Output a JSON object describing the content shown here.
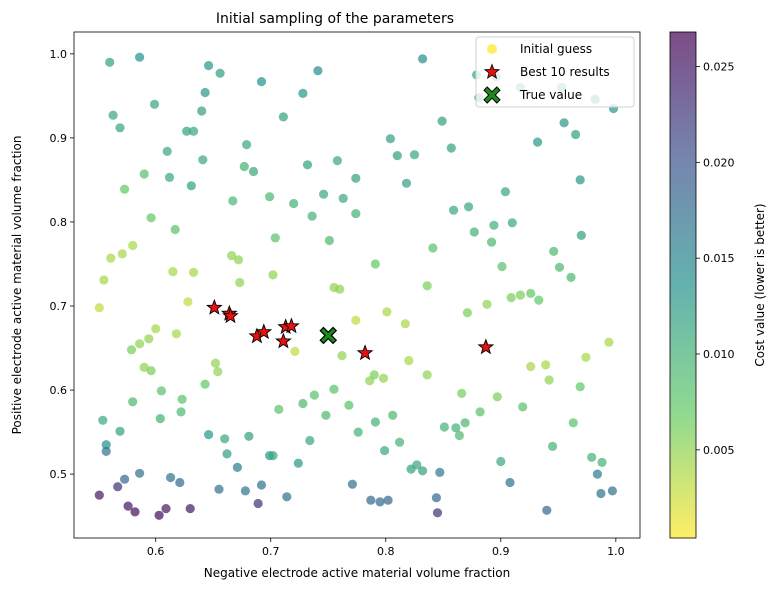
{
  "chart_data": {
    "type": "scatter",
    "title": "Initial sampling of the parameters",
    "xlabel": "Negative electrode active material volume fraction",
    "ylabel": "Positive electrode active material volume fraction",
    "xlim": [
      0.529,
      1.021
    ],
    "ylim": [
      0.424,
      1.026
    ],
    "x_ticks": [
      0.6,
      0.7,
      0.8,
      0.9,
      1.0
    ],
    "x_tick_labels": [
      "0.6",
      "0.7",
      "0.8",
      "0.9",
      "1.0"
    ],
    "y_ticks": [
      0.5,
      0.6,
      0.7,
      0.8,
      0.9,
      1.0
    ],
    "y_tick_labels": [
      "0.5",
      "0.6",
      "0.7",
      "0.8",
      "0.9",
      "1.0"
    ],
    "grid": false,
    "legend_position": "top-right",
    "legend": {
      "initial": "Initial guess",
      "best": "Best 10 results",
      "true": "True value"
    },
    "colorbar": {
      "label": "Cost value (lower is better)",
      "min": 0.0004,
      "max": 0.0268,
      "colormap": "viridis_r",
      "ticks": [
        0.005,
        0.01,
        0.015,
        0.02,
        0.025
      ],
      "tick_labels": [
        "0.005",
        "0.010",
        "0.015",
        "0.020",
        "0.025"
      ]
    },
    "initial_guess": {
      "alpha": 0.7,
      "points": [
        [
          0.56,
          0.99,
          0.012
        ],
        [
          0.586,
          0.996,
          0.0135
        ],
        [
          0.646,
          0.986,
          0.013
        ],
        [
          0.656,
          0.977,
          0.012
        ],
        [
          0.692,
          0.967,
          0.0135
        ],
        [
          0.741,
          0.98,
          0.014
        ],
        [
          0.832,
          0.994,
          0.014
        ],
        [
          0.879,
          0.975,
          0.012
        ],
        [
          0.881,
          0.948,
          0.013
        ],
        [
          0.896,
          0.973,
          0.014
        ],
        [
          0.917,
          0.96,
          0.012
        ],
        [
          0.953,
          0.96,
          0.012
        ],
        [
          0.982,
          0.946,
          0.013
        ],
        [
          0.998,
          0.935,
          0.013
        ],
        [
          0.563,
          0.927,
          0.011
        ],
        [
          0.569,
          0.912,
          0.0115
        ],
        [
          0.599,
          0.94,
          0.011
        ],
        [
          0.627,
          0.908,
          0.012
        ],
        [
          0.633,
          0.908,
          0.011
        ],
        [
          0.64,
          0.932,
          0.012
        ],
        [
          0.643,
          0.954,
          0.013
        ],
        [
          0.679,
          0.892,
          0.011
        ],
        [
          0.711,
          0.925,
          0.012
        ],
        [
          0.728,
          0.953,
          0.013
        ],
        [
          0.804,
          0.899,
          0.012
        ],
        [
          0.81,
          0.879,
          0.012
        ],
        [
          0.825,
          0.88,
          0.011
        ],
        [
          0.849,
          0.92,
          0.012
        ],
        [
          0.857,
          0.888,
          0.012
        ],
        [
          0.932,
          0.895,
          0.013
        ],
        [
          0.955,
          0.918,
          0.013
        ],
        [
          0.965,
          0.904,
          0.012
        ],
        [
          0.573,
          0.839,
          0.007
        ],
        [
          0.61,
          0.884,
          0.011
        ],
        [
          0.612,
          0.853,
          0.011
        ],
        [
          0.631,
          0.843,
          0.012
        ],
        [
          0.641,
          0.874,
          0.011
        ],
        [
          0.677,
          0.866,
          0.01
        ],
        [
          0.685,
          0.86,
          0.011
        ],
        [
          0.732,
          0.868,
          0.012
        ],
        [
          0.758,
          0.873,
          0.011
        ],
        [
          0.763,
          0.828,
          0.011
        ],
        [
          0.774,
          0.852,
          0.012
        ],
        [
          0.818,
          0.846,
          0.012
        ],
        [
          0.904,
          0.836,
          0.011
        ],
        [
          0.969,
          0.85,
          0.013
        ],
        [
          0.59,
          0.857,
          0.008
        ],
        [
          0.596,
          0.805,
          0.007
        ],
        [
          0.617,
          0.791,
          0.008
        ],
        [
          0.667,
          0.825,
          0.009
        ],
        [
          0.699,
          0.83,
          0.009
        ],
        [
          0.72,
          0.822,
          0.01
        ],
        [
          0.736,
          0.807,
          0.01
        ],
        [
          0.746,
          0.833,
          0.011
        ],
        [
          0.751,
          0.778,
          0.009
        ],
        [
          0.774,
          0.81,
          0.01
        ],
        [
          0.859,
          0.814,
          0.011
        ],
        [
          0.872,
          0.818,
          0.011
        ],
        [
          0.877,
          0.788,
          0.01
        ],
        [
          0.894,
          0.796,
          0.01
        ],
        [
          0.91,
          0.799,
          0.011
        ],
        [
          0.97,
          0.784,
          0.012
        ],
        [
          0.555,
          0.731,
          0.004
        ],
        [
          0.561,
          0.757,
          0.004
        ],
        [
          0.571,
          0.762,
          0.004
        ],
        [
          0.58,
          0.772,
          0.004
        ],
        [
          0.615,
          0.741,
          0.004
        ],
        [
          0.633,
          0.74,
          0.004
        ],
        [
          0.666,
          0.76,
          0.005
        ],
        [
          0.672,
          0.755,
          0.005
        ],
        [
          0.673,
          0.728,
          0.005
        ],
        [
          0.702,
          0.737,
          0.005
        ],
        [
          0.704,
          0.781,
          0.008
        ],
        [
          0.791,
          0.75,
          0.007
        ],
        [
          0.841,
          0.769,
          0.008
        ],
        [
          0.892,
          0.776,
          0.009
        ],
        [
          0.901,
          0.747,
          0.008
        ],
        [
          0.946,
          0.765,
          0.009
        ],
        [
          0.951,
          0.746,
          0.009
        ],
        [
          0.961,
          0.734,
          0.009
        ],
        [
          0.551,
          0.698,
          0.003
        ],
        [
          0.586,
          0.655,
          0.005
        ],
        [
          0.594,
          0.661,
          0.005
        ],
        [
          0.6,
          0.673,
          0.004
        ],
        [
          0.618,
          0.667,
          0.004
        ],
        [
          0.628,
          0.705,
          0.003
        ],
        [
          0.755,
          0.722,
          0.005
        ],
        [
          0.76,
          0.72,
          0.005
        ],
        [
          0.762,
          0.641,
          0.005
        ],
        [
          0.774,
          0.683,
          0.003
        ],
        [
          0.801,
          0.693,
          0.004
        ],
        [
          0.817,
          0.679,
          0.004
        ],
        [
          0.836,
          0.724,
          0.006
        ],
        [
          0.871,
          0.692,
          0.006
        ],
        [
          0.888,
          0.702,
          0.005
        ],
        [
          0.909,
          0.71,
          0.006
        ],
        [
          0.917,
          0.713,
          0.006
        ],
        [
          0.926,
          0.715,
          0.007
        ],
        [
          0.933,
          0.707,
          0.007
        ],
        [
          0.579,
          0.648,
          0.006
        ],
        [
          0.59,
          0.627,
          0.005
        ],
        [
          0.596,
          0.623,
          0.006
        ],
        [
          0.605,
          0.599,
          0.008
        ],
        [
          0.623,
          0.589,
          0.008
        ],
        [
          0.643,
          0.607,
          0.007
        ],
        [
          0.652,
          0.632,
          0.005
        ],
        [
          0.654,
          0.622,
          0.005
        ],
        [
          0.721,
          0.646,
          0.003
        ],
        [
          0.786,
          0.611,
          0.005
        ],
        [
          0.79,
          0.618,
          0.006
        ],
        [
          0.798,
          0.614,
          0.005
        ],
        [
          0.82,
          0.635,
          0.004
        ],
        [
          0.836,
          0.618,
          0.005
        ],
        [
          0.866,
          0.596,
          0.006
        ],
        [
          0.897,
          0.592,
          0.006
        ],
        [
          0.926,
          0.628,
          0.004
        ],
        [
          0.939,
          0.63,
          0.004
        ],
        [
          0.942,
          0.612,
          0.005
        ],
        [
          0.969,
          0.604,
          0.007
        ],
        [
          0.974,
          0.639,
          0.004
        ],
        [
          0.994,
          0.657,
          0.004
        ],
        [
          0.554,
          0.564,
          0.011
        ],
        [
          0.557,
          0.535,
          0.014
        ],
        [
          0.569,
          0.551,
          0.012
        ],
        [
          0.58,
          0.586,
          0.009
        ],
        [
          0.604,
          0.566,
          0.01
        ],
        [
          0.622,
          0.574,
          0.009
        ],
        [
          0.646,
          0.547,
          0.013
        ],
        [
          0.66,
          0.542,
          0.011
        ],
        [
          0.662,
          0.524,
          0.012
        ],
        [
          0.681,
          0.545,
          0.012
        ],
        [
          0.699,
          0.522,
          0.013
        ],
        [
          0.702,
          0.522,
          0.011
        ],
        [
          0.707,
          0.577,
          0.008
        ],
        [
          0.724,
          0.513,
          0.013
        ],
        [
          0.728,
          0.584,
          0.009
        ],
        [
          0.734,
          0.54,
          0.011
        ],
        [
          0.738,
          0.594,
          0.008
        ],
        [
          0.748,
          0.57,
          0.009
        ],
        [
          0.755,
          0.601,
          0.008
        ],
        [
          0.768,
          0.582,
          0.008
        ],
        [
          0.776,
          0.55,
          0.01
        ],
        [
          0.791,
          0.562,
          0.01
        ],
        [
          0.799,
          0.528,
          0.011
        ],
        [
          0.806,
          0.57,
          0.009
        ],
        [
          0.812,
          0.538,
          0.01
        ],
        [
          0.822,
          0.506,
          0.012
        ],
        [
          0.827,
          0.511,
          0.011
        ],
        [
          0.832,
          0.504,
          0.012
        ],
        [
          0.851,
          0.556,
          0.01
        ],
        [
          0.861,
          0.555,
          0.01
        ],
        [
          0.864,
          0.546,
          0.009
        ],
        [
          0.869,
          0.561,
          0.009
        ],
        [
          0.882,
          0.574,
          0.008
        ],
        [
          0.9,
          0.515,
          0.011
        ],
        [
          0.919,
          0.58,
          0.008
        ],
        [
          0.945,
          0.533,
          0.01
        ],
        [
          0.963,
          0.561,
          0.008
        ],
        [
          0.979,
          0.52,
          0.01
        ],
        [
          0.988,
          0.514,
          0.01
        ],
        [
          0.557,
          0.527,
          0.017
        ],
        [
          0.573,
          0.494,
          0.018
        ],
        [
          0.586,
          0.501,
          0.017
        ],
        [
          0.613,
          0.496,
          0.017
        ],
        [
          0.621,
          0.49,
          0.018
        ],
        [
          0.655,
          0.482,
          0.017
        ],
        [
          0.671,
          0.508,
          0.016
        ],
        [
          0.678,
          0.48,
          0.017
        ],
        [
          0.692,
          0.487,
          0.017
        ],
        [
          0.714,
          0.473,
          0.017
        ],
        [
          0.771,
          0.488,
          0.017
        ],
        [
          0.787,
          0.469,
          0.018
        ],
        [
          0.795,
          0.467,
          0.018
        ],
        [
          0.802,
          0.469,
          0.018
        ],
        [
          0.847,
          0.502,
          0.016
        ],
        [
          0.844,
          0.472,
          0.018
        ],
        [
          0.908,
          0.49,
          0.017
        ],
        [
          0.984,
          0.5,
          0.016
        ],
        [
          0.987,
          0.477,
          0.017
        ],
        [
          0.997,
          0.48,
          0.017
        ],
        [
          0.94,
          0.457,
          0.018
        ],
        [
          0.551,
          0.475,
          0.025
        ],
        [
          0.567,
          0.485,
          0.023
        ],
        [
          0.576,
          0.462,
          0.025
        ],
        [
          0.582,
          0.455,
          0.026
        ],
        [
          0.603,
          0.451,
          0.026
        ],
        [
          0.609,
          0.459,
          0.025
        ],
        [
          0.63,
          0.459,
          0.025
        ],
        [
          0.689,
          0.465,
          0.023
        ],
        [
          0.845,
          0.454,
          0.023
        ]
      ]
    },
    "best_results": [
      [
        0.651,
        0.698
      ],
      [
        0.664,
        0.691
      ],
      [
        0.665,
        0.688
      ],
      [
        0.688,
        0.664
      ],
      [
        0.694,
        0.669
      ],
      [
        0.711,
        0.658
      ],
      [
        0.713,
        0.675
      ],
      [
        0.718,
        0.676
      ],
      [
        0.782,
        0.644
      ],
      [
        0.887,
        0.651
      ]
    ],
    "true_value": [
      0.75,
      0.665
    ]
  }
}
